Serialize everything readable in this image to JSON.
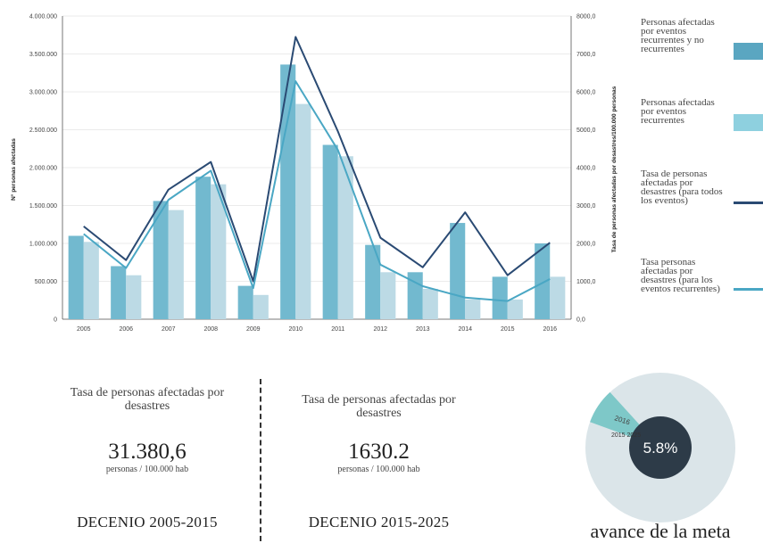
{
  "chart_data": {
    "type": "bar",
    "categories": [
      "2005",
      "2006",
      "2007",
      "2008",
      "2009",
      "2010",
      "2011",
      "2012",
      "2013",
      "2014",
      "2015",
      "2016"
    ],
    "xlabel": "",
    "ylabel": "N° personas afectadas",
    "y2label": "Tasa de personas afectadas por desastres/100.000 personas",
    "ylim": [
      0,
      4000000
    ],
    "y2lim": [
      0,
      8000
    ],
    "y_ticks": [
      "0",
      "500.000",
      "1.000.000",
      "1.500.000",
      "2.000.000",
      "2.500.000",
      "3.000.000",
      "3.500.000",
      "4.000.000"
    ],
    "y2_ticks": [
      "0,0",
      "1000,0",
      "2000,0",
      "3000,0",
      "4000,0",
      "5000,0",
      "6000,0",
      "7000,0",
      "8000,0"
    ],
    "series": [
      {
        "name": "Personas afectadas por eventos recurrentes y no recurrentes",
        "kind": "bar",
        "color": "#72b9cf",
        "values": [
          1100000,
          700000,
          1560000,
          1880000,
          440000,
          3360000,
          2300000,
          980000,
          620000,
          1270000,
          560000,
          1000000
        ]
      },
      {
        "name": "Personas afectadas por eventos recurrentes",
        "kind": "bar",
        "color": "#bcdae5",
        "values": [
          1020000,
          580000,
          1440000,
          1780000,
          320000,
          2840000,
          2150000,
          620000,
          400000,
          260000,
          260000,
          560000
        ]
      },
      {
        "name": "Tasa de personas afectadas por desastres (para todos los eventos)",
        "kind": "line",
        "axis": "right",
        "color": "#2a4a73",
        "values": [
          2450,
          1560,
          3420,
          4150,
          1000,
          7450,
          4950,
          2150,
          1370,
          2820,
          1160,
          2020
        ]
      },
      {
        "name": "Tasa personas afectadas por desastres (para los eventos recurrentes)",
        "kind": "line",
        "axis": "right",
        "color": "#4aa7c4",
        "values": [
          2250,
          1350,
          3150,
          3920,
          820,
          6280,
          4460,
          1440,
          870,
          570,
          480,
          1060
        ]
      }
    ]
  },
  "legend": [
    {
      "text": "Personas afectadas por eventos recurrentes y no recurrentes",
      "color": "#5aa6c1",
      "kind": "bar"
    },
    {
      "text": "Personas afectadas por eventos recurrentes",
      "color": "#8ed0df",
      "kind": "bar"
    },
    {
      "text": "Tasa de personas afectadas por desastres (para todos los eventos)",
      "color": "#2a4a73",
      "kind": "line"
    },
    {
      "text": "Tasa personas afectadas por desastres (para los eventos recurrentes)",
      "color": "#4aa7c4",
      "kind": "line"
    }
  ],
  "stats": {
    "left": {
      "label": "Tasa de personas afectadas por desastres",
      "value": "31.380,6",
      "unit": "personas / 100.000 hab",
      "decade": "DECENIO 2005-2015"
    },
    "right": {
      "label": "Tasa de personas afectadas por desastres",
      "value": "1630.2",
      "unit": "personas / 100.000 hab",
      "decade": "DECENIO 2015-2025"
    }
  },
  "progress": {
    "percent_label": "5.8%",
    "fraction": 0.058,
    "segment_label_top": "2016",
    "segment_label_bottom": "2015 2025",
    "caption": "avance de la meta",
    "colors": {
      "ring": "#dbe5e9",
      "segment": "#7ec8c8",
      "center": "#2d3b48"
    }
  }
}
